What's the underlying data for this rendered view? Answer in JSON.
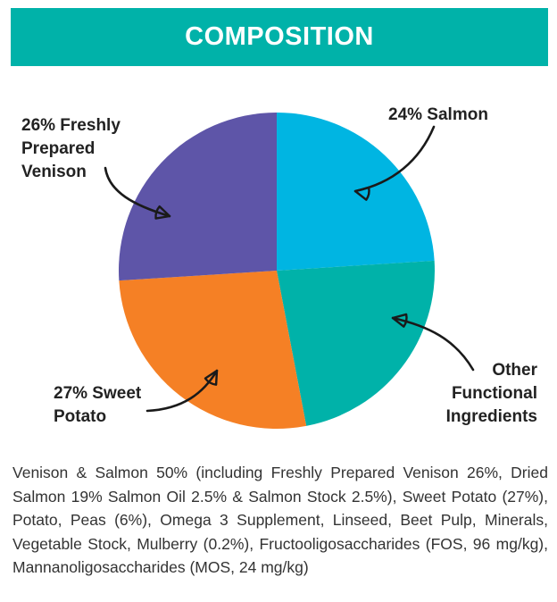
{
  "header": {
    "title": "COMPOSITION"
  },
  "chart_data": {
    "type": "pie",
    "title": "",
    "slices": [
      {
        "name": "24% Salmon",
        "value": 24,
        "color": "#00b5e2",
        "label_lines": [
          "24% Salmon"
        ]
      },
      {
        "name": "Other Functional Ingredients",
        "value": 23,
        "color": "#00b2a9",
        "label_lines": [
          "Other",
          "Functional",
          "Ingredients"
        ]
      },
      {
        "name": "27% Sweet Potato",
        "value": 27,
        "color": "#f58025",
        "label_lines": [
          "27% Sweet",
          "Potato"
        ]
      },
      {
        "name": "26% Freshly Prepared Venison",
        "value": 26,
        "color": "#5e55a8",
        "label_lines": [
          "26% Freshly",
          "Prepared",
          "Venison"
        ]
      }
    ],
    "start_angle_deg": 0,
    "direction": "clockwise",
    "legend": "none"
  },
  "composition_text": "Venison & Salmon 50% (including Freshly Prepared Venison 26%, Dried Salmon 19% Salmon Oil 2.5% & Salmon Stock 2.5%), Sweet Potato (27%), Potato, Peas (6%), Omega 3 Supplement, Linseed, Beet Pulp, Minerals, Vegetable Stock, Mulberry (0.2%), Fructooligosaccharides (FOS, 96 mg/kg),  Mannanoligosaccharides (MOS, 24 mg/kg)"
}
